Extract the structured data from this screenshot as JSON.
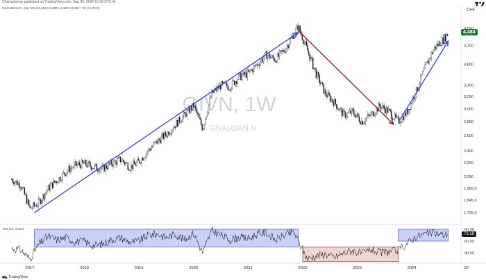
{
  "header": {
    "publisher": "Chartvisionas published on TradingView.com, Sep 06, 2024 16:20 UTC+8",
    "legend": "GIVAUDAN N, 1W, SIX  O4,401  H4,499  L4,429  C4,484  +78 (+1.76%)"
  },
  "watermark": {
    "ticker": "GIVN, 1W",
    "name": "GIVAUDAN N"
  },
  "price_axis": {
    "currency": "CHF",
    "ticks": [
      "4,600",
      "4,200",
      "3,800",
      "3,400",
      "3,200",
      "3,000",
      "2,800",
      "2,600",
      "2,400",
      "2,250",
      "2,090",
      "1,965.0",
      "1,845.0",
      "1,725.0",
      "1,625.0"
    ]
  },
  "last_price_label": "4,484",
  "rsi": {
    "legend": "RSI (14, close)",
    "ticks": [
      "80.00",
      "60.09",
      "40.00"
    ],
    "last_value_label": "73.19"
  },
  "time_axis": {
    "ticks": [
      "2017",
      "2018",
      "2019",
      "2020",
      "2021",
      "2022",
      "2023",
      "2024",
      "20"
    ]
  },
  "footer": {
    "brand": "TradingView"
  },
  "colors": {
    "up_trend": "#2b3fd6",
    "down_trend": "#8b1a1a",
    "candle": "#131722",
    "rsi_band_up": "#b9c0f5",
    "rsi_band_down": "#ebc6c3",
    "last_price_bg": "#1f7a3a"
  },
  "chart_data": [
    {
      "type": "line",
      "title": "GIVAUDAN N, 1W",
      "y_scale": "log",
      "ylim": [
        1625,
        4650
      ],
      "x": [
        "2016-09",
        "2016-11",
        "2017-01",
        "2017-03",
        "2017-05",
        "2017-07",
        "2017-09",
        "2017-11",
        "2018-01",
        "2018-03",
        "2018-05",
        "2018-07",
        "2018-09",
        "2018-11",
        "2019-01",
        "2019-03",
        "2019-05",
        "2019-07",
        "2019-09",
        "2019-11",
        "2020-01",
        "2020-03",
        "2020-05",
        "2020-07",
        "2020-09",
        "2020-11",
        "2021-01",
        "2021-03",
        "2021-05",
        "2021-07",
        "2021-09",
        "2021-11",
        "2021-12",
        "2022-02",
        "2022-04",
        "2022-06",
        "2022-08",
        "2022-10",
        "2022-12",
        "2023-02",
        "2023-04",
        "2023-06",
        "2023-08",
        "2023-10",
        "2023-12",
        "2024-02",
        "2024-04",
        "2024-06",
        "2024-08",
        "2024-09"
      ],
      "series": [
        {
          "values": [
            2060,
            2000,
            1760,
            1820,
            1960,
            2050,
            2150,
            2220,
            2240,
            2200,
            2180,
            2240,
            2290,
            2200,
            2260,
            2400,
            2520,
            2620,
            2760,
            2900,
            3050,
            2700,
            3250,
            3400,
            3380,
            3550,
            3620,
            3800,
            4000,
            3900,
            4100,
            4450,
            4650,
            4100,
            3600,
            3250,
            3100,
            2900,
            2950,
            2800,
            2900,
            3050,
            2950,
            2800,
            2950,
            3300,
            3750,
            4150,
            4350,
            4484
          ]
        }
      ],
      "annotations": [
        {
          "type": "trendline",
          "from": [
            "2017-02",
            1725
          ],
          "to": [
            "2021-12",
            4500
          ]
        },
        {
          "type": "trendline",
          "from": [
            "2021-12",
            4550
          ],
          "to": [
            "2023-09",
            2760
          ]
        },
        {
          "type": "trendline",
          "from": [
            "2023-10",
            2790
          ],
          "to": [
            "2024-09",
            4300
          ]
        }
      ]
    },
    {
      "type": "line",
      "title": "RSI (14, close)",
      "ylim": [
        20,
        85
      ],
      "x": [
        "2016-09",
        "2016-11",
        "2017-01",
        "2017-03",
        "2017-05",
        "2017-07",
        "2017-09",
        "2017-11",
        "2018-01",
        "2018-03",
        "2018-05",
        "2018-07",
        "2018-09",
        "2018-11",
        "2019-01",
        "2019-03",
        "2019-05",
        "2019-07",
        "2019-09",
        "2019-11",
        "2020-01",
        "2020-03",
        "2020-05",
        "2020-07",
        "2020-09",
        "2020-11",
        "2021-01",
        "2021-03",
        "2021-05",
        "2021-07",
        "2021-09",
        "2021-11",
        "2021-12",
        "2022-02",
        "2022-04",
        "2022-06",
        "2022-08",
        "2022-10",
        "2022-12",
        "2023-02",
        "2023-04",
        "2023-06",
        "2023-08",
        "2023-10",
        "2023-12",
        "2024-02",
        "2024-04",
        "2024-06",
        "2024-08",
        "2024-09"
      ],
      "series": [
        {
          "values": [
            48,
            45,
            30,
            55,
            68,
            62,
            66,
            58,
            60,
            52,
            55,
            62,
            66,
            58,
            60,
            70,
            72,
            66,
            72,
            62,
            74,
            40,
            78,
            70,
            62,
            66,
            64,
            72,
            74,
            62,
            70,
            76,
            60,
            30,
            35,
            38,
            32,
            40,
            44,
            38,
            46,
            40,
            42,
            44,
            56,
            68,
            72,
            74,
            70,
            73.19
          ]
        }
      ],
      "annotations": [
        {
          "type": "range",
          "x": [
            "2017-02",
            "2021-12"
          ],
          "y": [
            50,
            80
          ]
        },
        {
          "type": "range",
          "x": [
            "2022-01",
            "2023-10"
          ],
          "y": [
            25,
            50
          ]
        },
        {
          "type": "range",
          "x": [
            "2023-10",
            "2024-09"
          ],
          "y": [
            60,
            80
          ]
        }
      ]
    }
  ]
}
